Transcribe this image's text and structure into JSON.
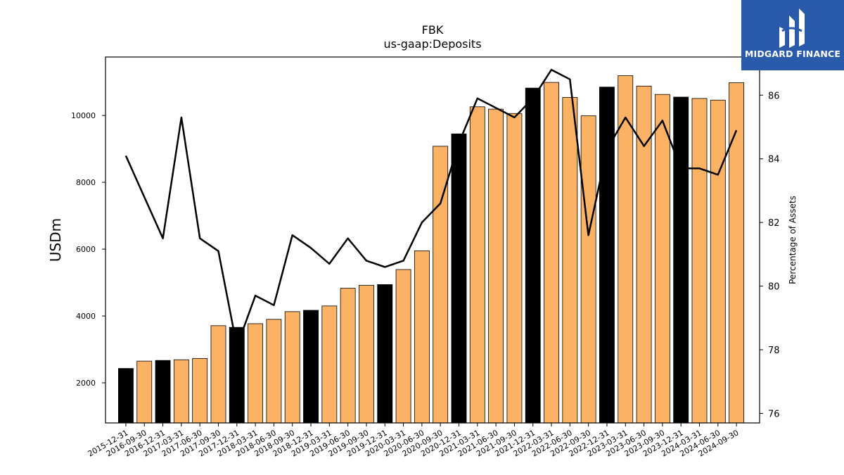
{
  "title": "FBK",
  "subtitle": "us-gaap:Deposits",
  "brand": {
    "name": "MIDGARD FINANCE",
    "color": "#2a5bab",
    "icon": "midgard-logo-icon"
  },
  "chart_data": {
    "type": "bar",
    "title": "FBK",
    "subtitle": "us-gaap:Deposits",
    "ylabel": "USDm",
    "y2label": "Percentage of Assets",
    "ylim": [
      800,
      11750
    ],
    "y2lim": [
      75.7,
      87.2
    ],
    "yticks": [
      2000,
      4000,
      6000,
      8000,
      10000
    ],
    "y2ticks": [
      76,
      78,
      80,
      82,
      84,
      86
    ],
    "grid": false,
    "colors": {
      "orange": "#fbb265",
      "black": "#000000",
      "line": "#000000"
    },
    "categories": [
      "2015-12-31",
      "2016-09-30",
      "2016-12-31",
      "2017-03-31",
      "2017-06-30",
      "2017-09-30",
      "2017-12-31",
      "2018-03-31",
      "2018-06-30",
      "2018-09-30",
      "2018-12-31",
      "2019-03-31",
      "2019-06-30",
      "2019-09-30",
      "2019-12-31",
      "2020-03-31",
      "2020-06-30",
      "2020-09-30",
      "2020-12-31",
      "2021-03-31",
      "2021-06-30",
      "2021-09-30",
      "2021-12-31",
      "2022-03-31",
      "2022-06-30",
      "2022-09-30",
      "2022-12-31",
      "2023-03-31",
      "2023-06-30",
      "2023-09-30",
      "2023-12-31",
      "2024-03-31",
      "2024-06-30",
      "2024-09-30"
    ],
    "series": [
      {
        "values": [
          2430,
          2650,
          2670,
          2690,
          2730,
          3710,
          3660,
          3770,
          3900,
          4130,
          4170,
          4300,
          4830,
          4920,
          4940,
          5390,
          5950,
          9080,
          9450,
          10260,
          10190,
          10060,
          10820,
          10990,
          10540,
          9990,
          10850,
          11190,
          10880,
          10630,
          10550,
          10510,
          10460,
          10980
        ]
      },
      {
        "values": [
          84.1,
          82.8,
          81.5,
          85.3,
          81.5,
          81.1,
          78.1,
          79.7,
          79.4,
          81.6,
          81.2,
          80.7,
          81.5,
          80.8,
          80.6,
          80.8,
          82.0,
          82.6,
          84.5,
          85.9,
          85.6,
          85.3,
          85.9,
          86.8,
          86.5,
          81.6,
          84.3,
          85.3,
          84.4,
          85.2,
          83.7,
          83.7,
          83.5,
          84.9
        ]
      }
    ],
    "bar_colors": [
      "black",
      "orange",
      "black",
      "orange",
      "orange",
      "orange",
      "black",
      "orange",
      "orange",
      "orange",
      "black",
      "orange",
      "orange",
      "orange",
      "black",
      "orange",
      "orange",
      "orange",
      "black",
      "orange",
      "orange",
      "orange",
      "black",
      "orange",
      "orange",
      "orange",
      "black",
      "orange",
      "orange",
      "orange",
      "black",
      "orange",
      "orange",
      "orange"
    ]
  }
}
